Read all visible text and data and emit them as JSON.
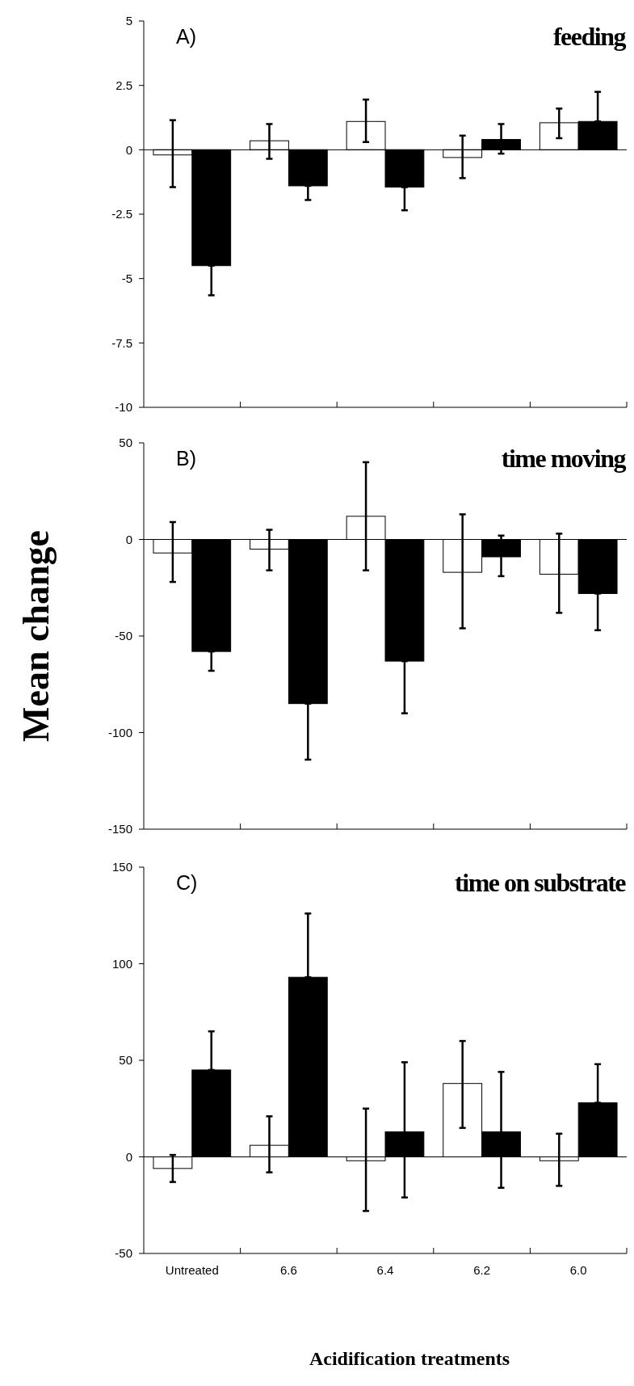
{
  "chart_data": [
    {
      "type": "bar",
      "title": "feeding",
      "annotations": [
        "A)"
      ],
      "categories": [
        null,
        null,
        null,
        null,
        null
      ],
      "tick_labels": "y",
      "series": [
        {
          "color": "#ffffff",
          "values": [
            -0.2,
            0.35,
            1.1,
            -0.3,
            1.05
          ],
          "errors": [
            [
              -1.45,
              1.15
            ],
            [
              -0.35,
              1.0
            ],
            [
              0.3,
              1.95
            ],
            [
              -1.1,
              0.55
            ],
            [
              0.45,
              1.6
            ]
          ]
        },
        {
          "color": "#000000",
          "values": [
            -4.5,
            -1.4,
            -1.45,
            0.4,
            1.1
          ],
          "errors": [
            [
              -5.65,
              -4.5
            ],
            [
              -1.95,
              -1.4
            ],
            [
              -2.35,
              -1.45
            ],
            [
              -0.15,
              1.0
            ],
            [
              1.1,
              2.25
            ]
          ]
        }
      ],
      "ylim": [
        -10,
        5
      ],
      "yticks": [
        -10,
        -7.5,
        -5,
        -2.5,
        0,
        2.5,
        5
      ]
    },
    {
      "type": "bar",
      "title": "time moving",
      "annotations": [
        "B)"
      ],
      "ylabel": "Mean change",
      "categories": [
        null,
        null,
        null,
        null,
        null
      ],
      "tick_labels": "y",
      "series": [
        {
          "color": "#ffffff",
          "values": [
            -7,
            -5,
            12,
            -17,
            -18
          ],
          "errors": [
            [
              -22,
              9
            ],
            [
              -16,
              5
            ],
            [
              -16,
              40
            ],
            [
              -46,
              13
            ],
            [
              -38,
              3
            ]
          ]
        },
        {
          "color": "#000000",
          "values": [
            -58,
            -85,
            -63,
            -9,
            -28
          ],
          "errors": [
            [
              -68,
              -58
            ],
            [
              -114,
              -85
            ],
            [
              -90,
              -63
            ],
            [
              -19,
              2
            ],
            [
              -47,
              -28
            ]
          ]
        }
      ],
      "ylim": [
        -150,
        50
      ],
      "yticks": [
        -150,
        -100,
        -50,
        0,
        50
      ]
    },
    {
      "type": "bar",
      "title": "time on substrate",
      "annotations": [
        "C)"
      ],
      "xlabel": "Acidification treatments",
      "categories": [
        "Untreated",
        "6.6",
        "6.4",
        "6.2",
        "6.0"
      ],
      "series": [
        {
          "color": "#ffffff",
          "values": [
            -6,
            6,
            -2,
            38,
            -2
          ],
          "errors": [
            [
              -13,
              1
            ],
            [
              -8,
              21
            ],
            [
              -28,
              25
            ],
            [
              15,
              60
            ],
            [
              -15,
              12
            ]
          ]
        },
        {
          "color": "#000000",
          "values": [
            45,
            93,
            13,
            13,
            28
          ],
          "errors": [
            [
              45,
              65
            ],
            [
              93,
              126
            ],
            [
              -21,
              49
            ],
            [
              -16,
              44
            ],
            [
              28,
              48
            ]
          ]
        }
      ],
      "ylim": [
        -50,
        150
      ],
      "yticks": [
        -50,
        0,
        50,
        100,
        150
      ]
    }
  ]
}
